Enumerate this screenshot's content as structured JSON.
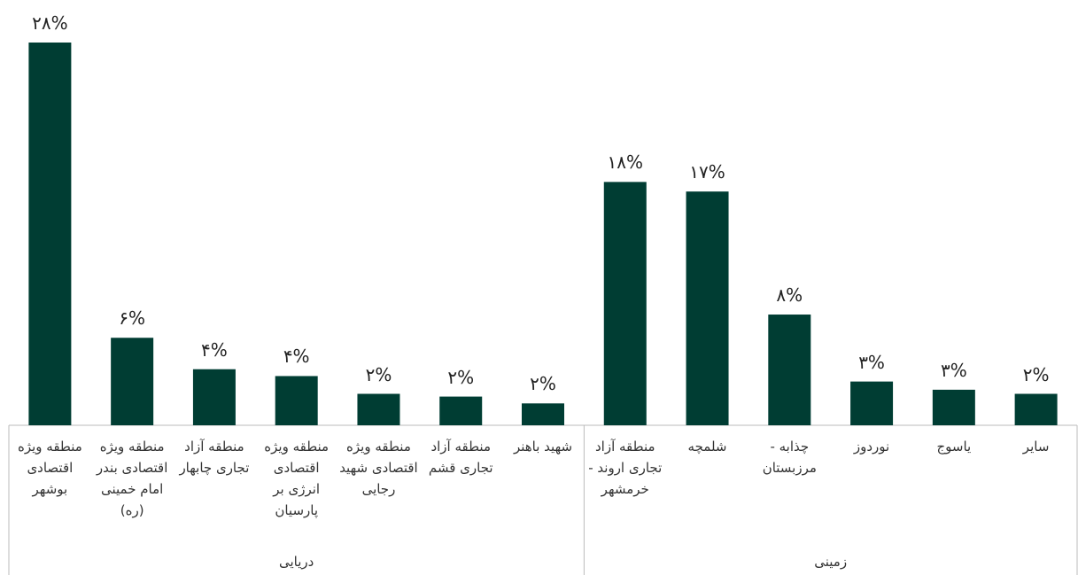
{
  "chart_data": {
    "type": "bar",
    "color": "#003d33",
    "groups": [
      {
        "name": "دریایی",
        "categories": [
          "منطقه ویژه اقتصادی بوشهر",
          "منطقه ویژه اقتصادی بندر امام خمینی (ره)",
          "منطقه آزاد تجاری چابهار",
          "منطقه ویژه اقتصادی انرژی بر پارسیان",
          "منطقه ویژه اقتصادی شهید رجایی",
          "منطقه آزاد تجاری قشم",
          "شهید باهنر"
        ],
        "values": [
          28,
          6.4,
          4.1,
          3.6,
          2.3,
          2.1,
          1.6
        ],
        "value_labels": [
          "۲۸%",
          "۶%",
          "۴%",
          "۴%",
          "۲%",
          "۲%",
          "۲%"
        ]
      },
      {
        "name": "زمینی",
        "categories": [
          "منطقه آزاد تجاری اروند - خرمشهر",
          "شلمچه",
          "چذابه - مرزبستان",
          "نوردوز",
          "یاسوج",
          "سایر"
        ],
        "values": [
          17.8,
          17.1,
          8.1,
          3.2,
          2.6,
          2.3
        ],
        "value_labels": [
          "۱۸%",
          "۱۷%",
          "۸%",
          "۳%",
          "۳%",
          "۲%"
        ]
      }
    ]
  }
}
